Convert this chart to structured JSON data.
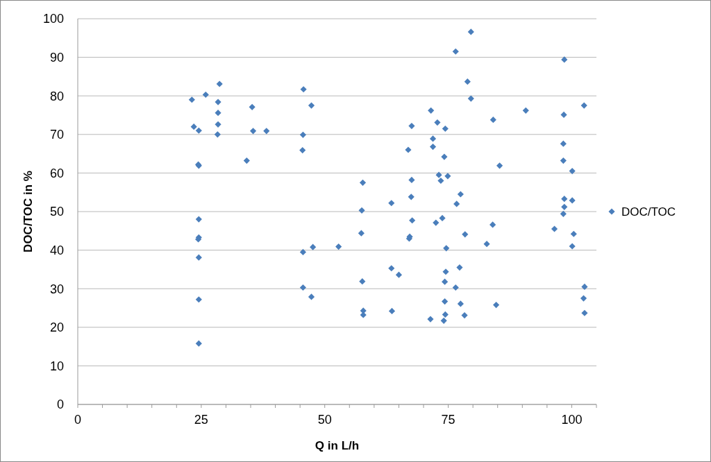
{
  "chart_data": {
    "type": "scatter",
    "xlabel": "Q in L/h",
    "ylabel": "DOC/TOC in %",
    "xlim": [
      0,
      105
    ],
    "ylim": [
      0,
      100
    ],
    "xticks": [
      0,
      {
        "value": 5,
        "label": null
      },
      {
        "value": 10,
        "label": null
      },
      {
        "value": 15,
        "label": null
      },
      {
        "value": 20,
        "label": null
      },
      25,
      {
        "value": 30,
        "label": null
      },
      {
        "value": 35,
        "label": null
      },
      {
        "value": 40,
        "label": null
      },
      {
        "value": 45,
        "label": null
      },
      50,
      {
        "value": 55,
        "label": null
      },
      {
        "value": 60,
        "label": null
      },
      {
        "value": 65,
        "label": null
      },
      {
        "value": 70,
        "label": null
      },
      75,
      {
        "value": 80,
        "label": null
      },
      {
        "value": 85,
        "label": null
      },
      {
        "value": 90,
        "label": null
      },
      {
        "value": 95,
        "label": null
      },
      100,
      {
        "value": 105,
        "label": null
      }
    ],
    "yticks": [
      0,
      10,
      20,
      30,
      40,
      50,
      60,
      70,
      80,
      90,
      100
    ],
    "grid": "y",
    "legend": "right",
    "marker": "diamond",
    "series": [
      {
        "name": "DOC/TOC",
        "color": "#4a7ebb",
        "x": [
          23.1,
          25.9,
          28.7,
          28.4,
          28.4,
          28.4,
          23.5,
          24.5,
          28.3,
          35.3,
          35.5,
          38.2,
          45.7,
          47.3,
          45.6,
          45.5,
          34.2,
          24.5,
          24.4,
          24.5,
          24.5,
          24.4,
          24.5,
          45.6,
          47.6,
          52.8,
          24.5,
          45.6,
          47.3,
          24.5,
          79.6,
          76.5,
          78.9,
          79.6,
          71.5,
          67.6,
          72.8,
          74.4,
          71.9,
          71.9,
          66.9,
          74.2,
          73.1,
          74.9,
          73.5,
          67.6,
          57.7,
          77.5,
          67.5,
          76.7,
          63.5,
          57.5,
          67.7,
          72.5,
          73.8,
          57.4,
          67.2,
          67.1,
          78.4,
          74.6,
          82.8,
          63.5,
          65.0,
          74.5,
          77.3,
          74.3,
          76.5,
          57.6,
          74.3,
          77.5,
          57.8,
          57.8,
          63.6,
          71.4,
          74.4,
          74.1,
          78.3,
          98.5,
          102.5,
          90.7,
          98.4,
          84.1,
          98.3,
          98.3,
          100.1,
          85.4,
          98.5,
          100.1,
          98.5,
          98.3,
          96.5,
          100.4,
          84.0,
          100.1,
          102.6,
          102.4,
          102.6,
          84.7
        ],
        "values": [
          79.0,
          80.3,
          83.1,
          78.4,
          75.6,
          72.6,
          72.0,
          71.0,
          70.0,
          77.1,
          70.9,
          70.9,
          81.7,
          77.5,
          69.9,
          65.9,
          63.2,
          61.9,
          62.2,
          48.0,
          43.3,
          42.8,
          38.1,
          39.5,
          40.8,
          40.9,
          27.2,
          30.3,
          27.9,
          15.8,
          96.6,
          91.5,
          83.7,
          79.3,
          76.2,
          72.2,
          73.1,
          71.5,
          68.9,
          66.8,
          66.0,
          64.2,
          59.5,
          59.2,
          58.0,
          58.2,
          57.5,
          54.5,
          53.8,
          52.0,
          52.2,
          50.3,
          47.7,
          47.1,
          48.3,
          44.4,
          43.5,
          43.0,
          44.1,
          40.5,
          41.6,
          35.3,
          33.6,
          34.4,
          35.5,
          31.8,
          30.3,
          31.9,
          26.7,
          26.1,
          24.3,
          23.2,
          24.2,
          22.1,
          23.3,
          21.7,
          23.1,
          89.4,
          77.5,
          76.2,
          75.1,
          73.8,
          67.6,
          63.2,
          60.5,
          61.9,
          53.3,
          52.9,
          51.2,
          49.4,
          45.5,
          44.2,
          46.6,
          41.0,
          30.5,
          27.5,
          23.7,
          25.8
        ]
      }
    ]
  }
}
